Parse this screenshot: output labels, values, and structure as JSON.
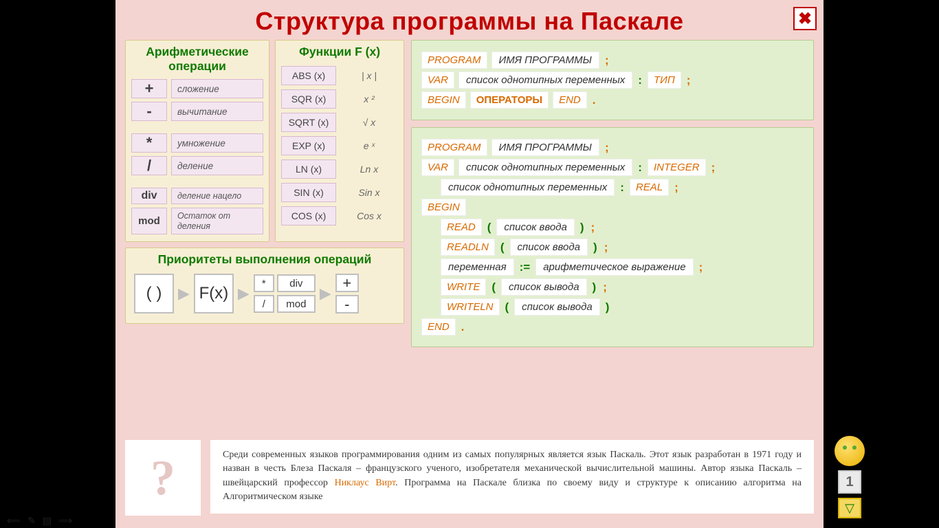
{
  "colors": {
    "slide_bg": "#f4d4d0",
    "panel_bg": "#f7efd5",
    "code_bg": "#e2efce",
    "pink_cell": "#f3e6f0",
    "title": "#c00000",
    "green_header": "#0f7a00",
    "keyword": "#d86a00"
  },
  "title": "Структура  программы  на  Паскале",
  "close_symbol": "✖",
  "arith": {
    "header": "Арифметические операции",
    "rows": [
      {
        "sym": "+",
        "name": "сложение"
      },
      {
        "sym": "-",
        "name": "вычитание"
      },
      {
        "sym": "*",
        "name": "умножение"
      },
      {
        "sym": "/",
        "name": "деление"
      },
      {
        "sym": "div",
        "name": "деление нацело"
      },
      {
        "sym": "mod",
        "name": "Остаток от деления"
      }
    ]
  },
  "func": {
    "header": "Функции  F (x)",
    "rows": [
      {
        "fn": "ABS (x)",
        "meaning": "| x |"
      },
      {
        "fn": "SQR (x)",
        "meaning": "x ²"
      },
      {
        "fn": "SQRT (x)",
        "meaning": "√ x"
      },
      {
        "fn": "EXP (x)",
        "meaning": "e ˣ"
      },
      {
        "fn": "LN (x)",
        "meaning": "Ln x"
      },
      {
        "fn": "SIN (x)",
        "meaning": "Sin x"
      },
      {
        "fn": "COS (x)",
        "meaning": "Cos x"
      }
    ]
  },
  "priority": {
    "header": "Приоритеты  выполнения  операций",
    "b1": "( )",
    "b2": "F(x)",
    "g": {
      "a": "*",
      "b": "div",
      "c": "/",
      "d": "mod"
    },
    "p": {
      "a": "+",
      "b": "-"
    },
    "arrow": "▶"
  },
  "skel": {
    "program": "PROGRAM",
    "program_name": "ИМЯ  ПРОГРАММЫ",
    "var": "VAR",
    "var_list": "список  однотипных  переменных",
    "type": "ТИП",
    "begin": "BEGIN",
    "operators": "ОПЕРАТОРЫ",
    "end": "END",
    "semi": ";",
    "colon": ":",
    "dot": "."
  },
  "full": {
    "program": "PROGRAM",
    "program_name": "ИМЯ  ПРОГРАММЫ",
    "var": "VAR",
    "var_list": "список  однотипных  переменных",
    "integer": "INTEGER",
    "real": "REAL",
    "begin": "BEGIN",
    "read": "READ",
    "readln": "READLN",
    "input_list": "список  ввода",
    "variable": "переменная",
    "assign": ":=",
    "expr": "арифметическое  выражение",
    "write": "WRITE",
    "writeln": "WRITELN",
    "output_list": "список  вывода",
    "end": "END",
    "lpar": "(",
    "rpar": ")",
    "semi": ";",
    "colon": ":",
    "dot": "."
  },
  "qmark": "?",
  "footer": {
    "t1": "Среди современных языков программирования одним из самых популярных является язык Паскаль. Этот язык разработан в 1971 году и назван в честь Блеза Паскаля – французского ученого, изобретателя механической вычислительной машины. Автор языка Паскаль – швейцарский профессор ",
    "hl": "Никлаус Вирт",
    "t2": ". Программа на Паскале близка по своему виду и структуре к описанию алгоритма на Алгоритмическом языке"
  },
  "page_number": "1",
  "nav_down": "▽"
}
